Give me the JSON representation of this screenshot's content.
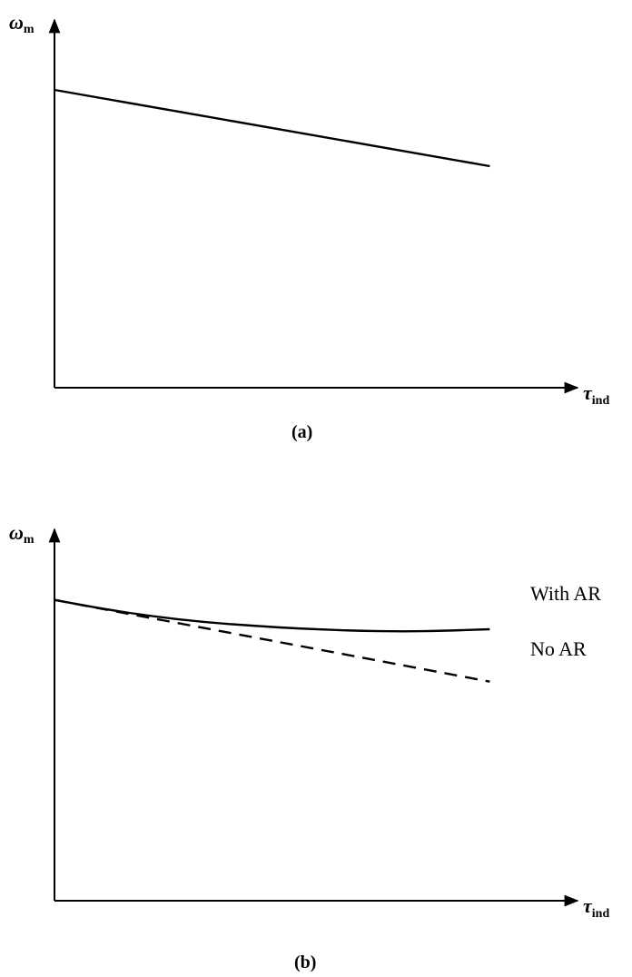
{
  "chart_data": [
    {
      "type": "line",
      "panel_label": "(a)",
      "xlabel": {
        "main": "τ",
        "sub": "ind"
      },
      "ylabel": {
        "main": "ω",
        "sub": "m"
      },
      "xlim": [
        0,
        1
      ],
      "ylim": [
        0,
        1
      ],
      "series": [
        {
          "style": "solid",
          "x": [
            0,
            0.87
          ],
          "y": [
            0.82,
            0.61
          ]
        }
      ]
    },
    {
      "type": "line",
      "panel_label": "(b)",
      "xlabel": {
        "main": "τ",
        "sub": "ind"
      },
      "ylabel": {
        "main": "ω",
        "sub": "m"
      },
      "xlim": [
        0,
        1
      ],
      "ylim": [
        0,
        1
      ],
      "series": [
        {
          "name": "With AR",
          "style": "solid",
          "x": [
            0,
            0.1,
            0.2,
            0.3,
            0.4,
            0.5,
            0.6,
            0.7,
            0.78,
            0.87
          ],
          "y": [
            0.81,
            0.785,
            0.765,
            0.75,
            0.74,
            0.732,
            0.727,
            0.725,
            0.727,
            0.731
          ]
        },
        {
          "name": "No AR",
          "style": "dashed",
          "x": [
            0,
            0.87
          ],
          "y": [
            0.81,
            0.59
          ]
        }
      ]
    }
  ]
}
